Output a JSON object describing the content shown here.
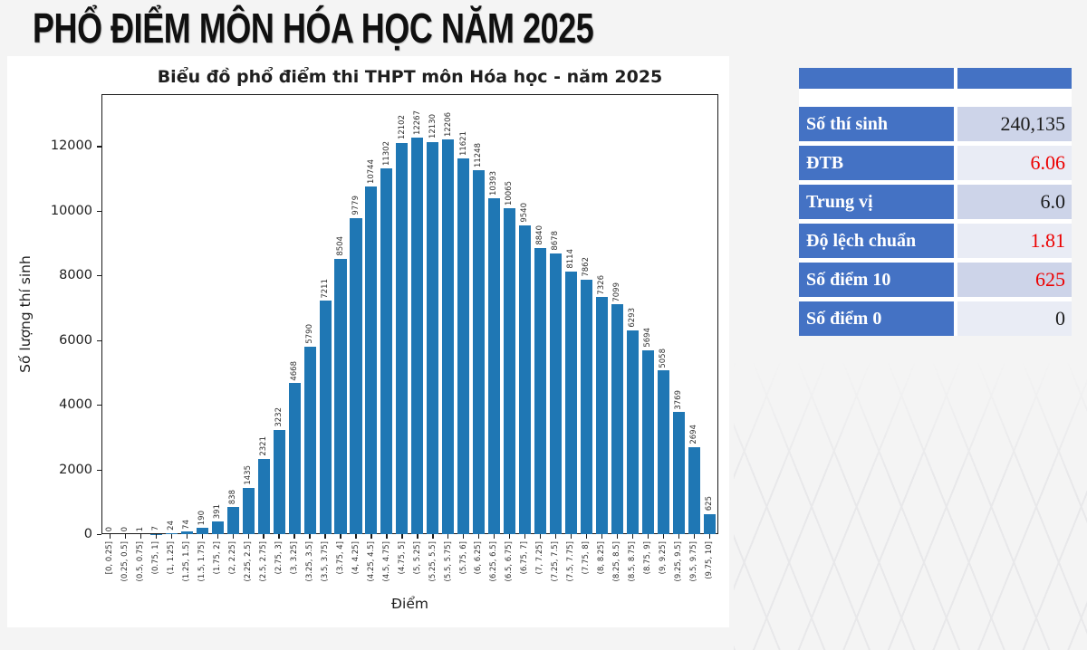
{
  "page_title": "PHỔ ĐIỂM MÔN HÓA HỌC NĂM 2025",
  "chart_data": {
    "type": "bar",
    "title": "Biểu đồ phổ điểm thi THPT môn Hóa học - năm 2025",
    "xlabel": "Điểm",
    "ylabel": "Số lượng thí sinh",
    "bar_color": "#1f77b4",
    "ylim": [
      0,
      13600
    ],
    "yticks": [
      0,
      2000,
      4000,
      6000,
      8000,
      10000,
      12000
    ],
    "legend": "none",
    "grid": false,
    "categories": [
      "[0, 0.25]",
      "(0.25, 0.5]",
      "(0.5, 0.75]",
      "(0.75, 1]",
      "(1, 1.25]",
      "(1.25, 1.5]",
      "(1.5, 1.75]",
      "(1.75, 2]",
      "(2, 2.25]",
      "(2.25, 2.5]",
      "(2.5, 2.75]",
      "(2.75, 3]",
      "(3, 3.25]",
      "(3.25, 3.5]",
      "(3.5, 3.75]",
      "(3.75, 4]",
      "(4, 4.25]",
      "(4.25, 4.5]",
      "(4.5, 4.75]",
      "(4.75, 5]",
      "(5, 5.25]",
      "(5.25, 5.5]",
      "(5.5, 5.75]",
      "(5.75, 6]",
      "(6, 6.25]",
      "(6.25, 6.5]",
      "(6.5, 6.75]",
      "(6.75, 7]",
      "(7, 7.25]",
      "(7.25, 7.5]",
      "(7.5, 7.75]",
      "(7.75, 8]",
      "(8, 8.25]",
      "(8.25, 8.5]",
      "(8.5, 8.75]",
      "(8.75, 9]",
      "(9, 9.25]",
      "(9.25, 9.5]",
      "(9.5, 9.75]",
      "(9.75, 10]"
    ],
    "values": [
      0,
      0,
      1,
      7,
      24,
      74,
      190,
      391,
      838,
      1435,
      2321,
      3232,
      4668,
      5790,
      7211,
      8504,
      9779,
      10744,
      11302,
      12102,
      12267,
      12130,
      12206,
      11621,
      11248,
      10393,
      10065,
      9540,
      8840,
      8678,
      8114,
      7862,
      7326,
      7099,
      6293,
      5694,
      5058,
      3769,
      2694,
      625
    ]
  },
  "stats_table": {
    "header_color": "#4472c4",
    "row_bg_odd": "#cdd4e9",
    "row_bg_even": "#e9ecf5",
    "rows": [
      {
        "label": "Số thí sinh",
        "value": "240,135",
        "value_color": "#1c1c1c"
      },
      {
        "label": "ĐTB",
        "value": "6.06",
        "value_color": "#ec0000"
      },
      {
        "label": "Trung vị",
        "value": "6.0",
        "value_color": "#1c1c1c"
      },
      {
        "label": "Độ lệch chuẩn",
        "value": "1.81",
        "value_color": "#ec0000"
      },
      {
        "label": "Số điểm 10",
        "value": "625",
        "value_color": "#ec0000"
      },
      {
        "label": "Số điểm 0",
        "value": "0",
        "value_color": "#1c1c1c"
      }
    ]
  }
}
